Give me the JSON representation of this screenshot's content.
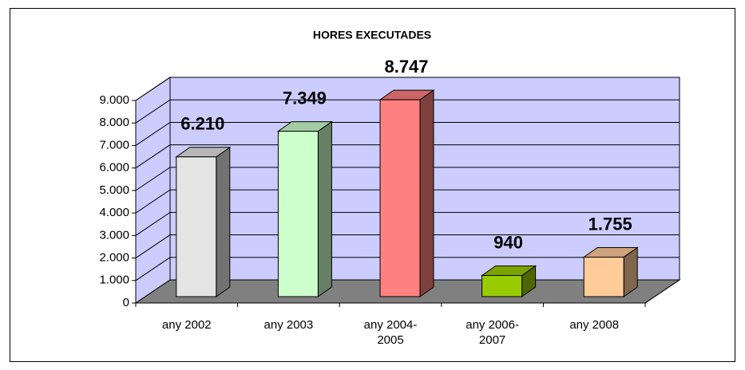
{
  "chart_data": {
    "type": "bar3d",
    "title": "HORES EXECUTADES",
    "categories": [
      "any 2002",
      "any 2003",
      "any 2004-2005",
      "any 2006-2007",
      "any 2008"
    ],
    "values": [
      6210,
      7349,
      8747,
      940,
      1755
    ],
    "value_labels": [
      "6.210",
      "7.349",
      "8.747",
      "940",
      "1.755"
    ],
    "colors": [
      "#e4e4e4",
      "#ccffcc",
      "#ff8080",
      "#99cc00",
      "#ffcc99"
    ],
    "ylim": [
      0,
      9000
    ],
    "yticks": [
      0,
      {
        "value": 1000,
        "label": "1.000"
      },
      {
        "value": 2000,
        "label": "2.000"
      },
      {
        "value": 3000,
        "label": "3.000"
      },
      {
        "value": 4000,
        "label": "4.000"
      },
      {
        "value": 5000,
        "label": "5.000"
      },
      {
        "value": 6000,
        "label": "6.000"
      },
      {
        "value": 7000,
        "label": "7.000"
      },
      {
        "value": 8000,
        "label": "8.000"
      },
      {
        "value": 9000,
        "label": "9.000"
      }
    ],
    "grid": true,
    "wall_color": "#ccccff",
    "floor_color": "#808080"
  }
}
